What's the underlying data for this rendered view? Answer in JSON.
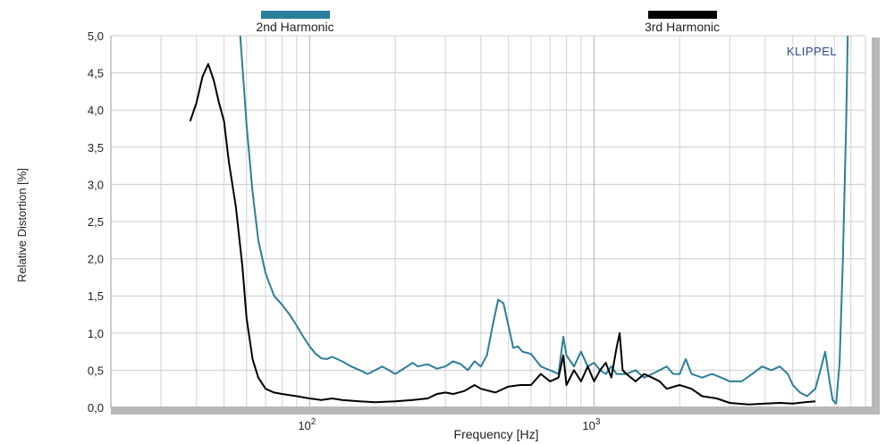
{
  "brand": {
    "text": "KLIPPEL",
    "color": "#2a4a8a"
  },
  "chart_data": {
    "type": "line",
    "title": "",
    "xlabel": "Frequency  [Hz]",
    "ylabel": "Relative Distortion  [%]",
    "xscale": "log",
    "xlim": [
      20,
      9000
    ],
    "ylim": [
      0,
      5
    ],
    "grid": true,
    "legend": "top",
    "x_tick_labels": [
      {
        "value": 100,
        "base": "10",
        "exp": "2"
      },
      {
        "value": 1000,
        "base": "10",
        "exp": "3"
      }
    ],
    "y_ticks": [
      0,
      0.5,
      1.0,
      1.5,
      2.0,
      2.5,
      3.0,
      3.5,
      4.0,
      4.5,
      5.0
    ],
    "y_tick_labels": [
      "0,0",
      "0,5",
      "1,0",
      "1,5",
      "2,0",
      "2,5",
      "3,0",
      "3,5",
      "4,0",
      "4,5",
      "5,0"
    ],
    "series": [
      {
        "name": "2nd Harmonic",
        "color": "#2a7f9a",
        "points": [
          [
            57,
            5.0
          ],
          [
            58,
            4.6
          ],
          [
            60,
            3.8
          ],
          [
            63,
            2.9
          ],
          [
            66,
            2.25
          ],
          [
            70,
            1.8
          ],
          [
            75,
            1.5
          ],
          [
            80,
            1.38
          ],
          [
            85,
            1.25
          ],
          [
            90,
            1.1
          ],
          [
            95,
            0.95
          ],
          [
            100,
            0.82
          ],
          [
            105,
            0.72
          ],
          [
            110,
            0.66
          ],
          [
            115,
            0.65
          ],
          [
            120,
            0.68
          ],
          [
            130,
            0.62
          ],
          [
            140,
            0.55
          ],
          [
            150,
            0.5
          ],
          [
            160,
            0.45
          ],
          [
            170,
            0.5
          ],
          [
            180,
            0.55
          ],
          [
            190,
            0.5
          ],
          [
            200,
            0.45
          ],
          [
            210,
            0.5
          ],
          [
            220,
            0.55
          ],
          [
            230,
            0.6
          ],
          [
            240,
            0.55
          ],
          [
            260,
            0.58
          ],
          [
            280,
            0.52
          ],
          [
            300,
            0.55
          ],
          [
            320,
            0.62
          ],
          [
            340,
            0.58
          ],
          [
            360,
            0.5
          ],
          [
            380,
            0.62
          ],
          [
            400,
            0.55
          ],
          [
            420,
            0.7
          ],
          [
            440,
            1.1
          ],
          [
            460,
            1.45
          ],
          [
            480,
            1.4
          ],
          [
            500,
            1.1
          ],
          [
            520,
            0.8
          ],
          [
            540,
            0.82
          ],
          [
            560,
            0.75
          ],
          [
            600,
            0.72
          ],
          [
            650,
            0.55
          ],
          [
            700,
            0.5
          ],
          [
            750,
            0.45
          ],
          [
            780,
            0.95
          ],
          [
            800,
            0.7
          ],
          [
            850,
            0.55
          ],
          [
            900,
            0.75
          ],
          [
            950,
            0.55
          ],
          [
            1000,
            0.6
          ],
          [
            1050,
            0.5
          ],
          [
            1100,
            0.45
          ],
          [
            1150,
            0.55
          ],
          [
            1200,
            0.45
          ],
          [
            1300,
            0.45
          ],
          [
            1400,
            0.5
          ],
          [
            1500,
            0.4
          ],
          [
            1600,
            0.45
          ],
          [
            1700,
            0.5
          ],
          [
            1800,
            0.55
          ],
          [
            1900,
            0.45
          ],
          [
            2000,
            0.45
          ],
          [
            2100,
            0.65
          ],
          [
            2200,
            0.45
          ],
          [
            2400,
            0.4
          ],
          [
            2600,
            0.45
          ],
          [
            2800,
            0.4
          ],
          [
            3000,
            0.35
          ],
          [
            3300,
            0.35
          ],
          [
            3600,
            0.45
          ],
          [
            3900,
            0.55
          ],
          [
            4200,
            0.5
          ],
          [
            4500,
            0.55
          ],
          [
            4800,
            0.45
          ],
          [
            5000,
            0.3
          ],
          [
            5300,
            0.2
          ],
          [
            5600,
            0.15
          ],
          [
            6000,
            0.25
          ],
          [
            6300,
            0.55
          ],
          [
            6500,
            0.75
          ],
          [
            6700,
            0.4
          ],
          [
            6900,
            0.1
          ],
          [
            7100,
            0.05
          ],
          [
            7300,
            0.6
          ],
          [
            7500,
            2.0
          ],
          [
            7700,
            3.8
          ],
          [
            7800,
            5.0
          ]
        ]
      },
      {
        "name": "3rd Harmonic",
        "color": "#000000",
        "points": [
          [
            38,
            3.85
          ],
          [
            40,
            4.1
          ],
          [
            42,
            4.45
          ],
          [
            44,
            4.62
          ],
          [
            46,
            4.4
          ],
          [
            48,
            4.1
          ],
          [
            50,
            3.85
          ],
          [
            52,
            3.3
          ],
          [
            55,
            2.7
          ],
          [
            58,
            1.9
          ],
          [
            60,
            1.2
          ],
          [
            63,
            0.65
          ],
          [
            66,
            0.4
          ],
          [
            70,
            0.25
          ],
          [
            75,
            0.2
          ],
          [
            80,
            0.18
          ],
          [
            90,
            0.15
          ],
          [
            100,
            0.12
          ],
          [
            110,
            0.1
          ],
          [
            120,
            0.12
          ],
          [
            130,
            0.1
          ],
          [
            150,
            0.08
          ],
          [
            170,
            0.07
          ],
          [
            200,
            0.08
          ],
          [
            230,
            0.1
          ],
          [
            260,
            0.12
          ],
          [
            280,
            0.18
          ],
          [
            300,
            0.2
          ],
          [
            320,
            0.18
          ],
          [
            350,
            0.22
          ],
          [
            380,
            0.3
          ],
          [
            400,
            0.25
          ],
          [
            450,
            0.2
          ],
          [
            500,
            0.28
          ],
          [
            550,
            0.3
          ],
          [
            600,
            0.3
          ],
          [
            650,
            0.45
          ],
          [
            700,
            0.35
          ],
          [
            750,
            0.4
          ],
          [
            780,
            0.7
          ],
          [
            800,
            0.3
          ],
          [
            850,
            0.5
          ],
          [
            900,
            0.35
          ],
          [
            950,
            0.55
          ],
          [
            1000,
            0.35
          ],
          [
            1050,
            0.5
          ],
          [
            1100,
            0.6
          ],
          [
            1150,
            0.4
          ],
          [
            1200,
            0.8
          ],
          [
            1230,
            1.0
          ],
          [
            1260,
            0.5
          ],
          [
            1300,
            0.45
          ],
          [
            1400,
            0.35
          ],
          [
            1500,
            0.45
          ],
          [
            1600,
            0.4
          ],
          [
            1700,
            0.35
          ],
          [
            1800,
            0.25
          ],
          [
            2000,
            0.3
          ],
          [
            2200,
            0.25
          ],
          [
            2400,
            0.15
          ],
          [
            2700,
            0.12
          ],
          [
            3000,
            0.06
          ],
          [
            3500,
            0.04
          ],
          [
            4000,
            0.05
          ],
          [
            4500,
            0.06
          ],
          [
            5000,
            0.05
          ],
          [
            5500,
            0.07
          ],
          [
            6000,
            0.08
          ]
        ]
      }
    ]
  }
}
